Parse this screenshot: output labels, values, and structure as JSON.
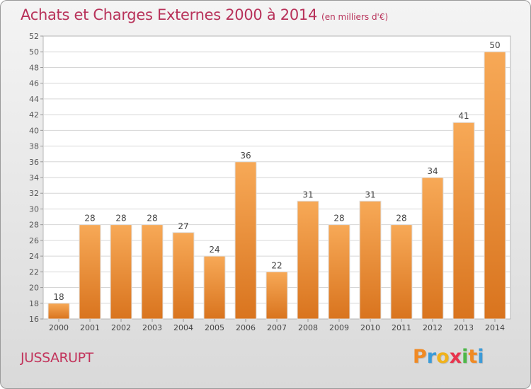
{
  "chart_data": {
    "type": "bar",
    "title": "Achats et Charges Externes 2000 à 2014",
    "subtitle": "(en milliers d'€)",
    "categories": [
      "2000",
      "2001",
      "2002",
      "2003",
      "2004",
      "2005",
      "2006",
      "2007",
      "2008",
      "2009",
      "2010",
      "2011",
      "2012",
      "2013",
      "2014"
    ],
    "values": [
      18,
      28,
      28,
      28,
      27,
      24,
      36,
      22,
      31,
      28,
      31,
      28,
      34,
      41,
      50
    ],
    "xlabel": "",
    "ylabel": "",
    "ylim": [
      16,
      52
    ],
    "yticks": [
      16,
      18,
      20,
      22,
      24,
      26,
      28,
      30,
      32,
      34,
      36,
      38,
      40,
      42,
      44,
      46,
      48,
      50,
      52
    ],
    "grid": true,
    "bar_color": "#f0913a"
  },
  "footer": {
    "town": "JUSSARUPT",
    "logo_letters": [
      "P",
      "r",
      "o",
      "x",
      "i",
      "t",
      "i"
    ],
    "logo_colors": [
      "#f08a24",
      "#3b9bd8",
      "#f0b21c",
      "#e8344e",
      "#4db848",
      "#f08a24",
      "#3b9bd8"
    ]
  }
}
